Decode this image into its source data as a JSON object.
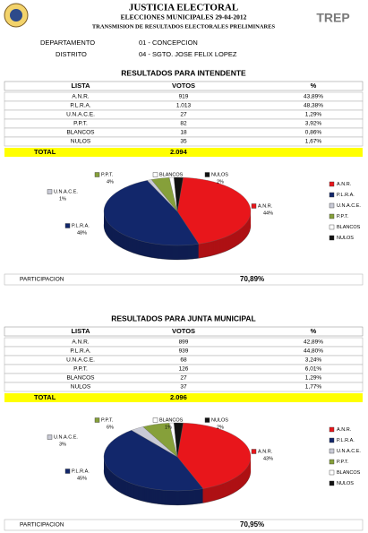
{
  "header": {
    "title": "JUSTICIA ELECTORAL",
    "subtitle": "ELECCIONES MUNICIPALES 29-04-2012",
    "subtitle2": "TRANSMISION DE RESULTADOS ELECTORALES PRELIMINARES",
    "logo": "TREP"
  },
  "info": [
    [
      "DEPARTAMENTO",
      "01 - CONCEPCION"
    ],
    [
      "DISTRITO",
      "04 - SGTO. JOSE FELIX LOPEZ"
    ]
  ],
  "sections": [
    {
      "title": "RESULTADOS PARA INTENDENTE",
      "columns": [
        "LISTA",
        "VOTOS",
        "%"
      ],
      "rows": [
        [
          "A.N.R.",
          "919",
          "43,89%"
        ],
        [
          "P.L.R.A.",
          "1.013",
          "48,38%"
        ],
        [
          "U.N.A.C.E.",
          "27",
          "1,29%"
        ],
        [
          "P.P.T.",
          "82",
          "3,92%"
        ],
        [
          "BLANCOS",
          "18",
          "0,86%"
        ],
        [
          "NULOS",
          "35",
          "1,67%"
        ]
      ],
      "total": [
        "TOTAL",
        "2.094"
      ],
      "chart_data": {
        "type": "pie",
        "categories": [
          "A.N.R.",
          "P.L.R.A.",
          "U.N.A.C.E.",
          "P.P.T.",
          "BLANCOS",
          "NULOS"
        ],
        "values": [
          44,
          48,
          1,
          4,
          1,
          2
        ],
        "value_labels": [
          "44%",
          "48%",
          "1%",
          "4%",
          null,
          "2%"
        ],
        "colors": [
          "#e8161b",
          "#12276b",
          "#c9cad6",
          "#86a03a",
          "#ffffff",
          "#111111"
        ]
      },
      "participation": [
        "PARTICIPACION",
        "70,89%"
      ]
    },
    {
      "title": "RESULTADOS PARA JUNTA MUNICIPAL",
      "columns": [
        "LISTA",
        "VOTOS",
        "%"
      ],
      "rows": [
        [
          "A.N.R.",
          "899",
          "42,89%"
        ],
        [
          "P.L.R.A.",
          "939",
          "44,80%"
        ],
        [
          "U.N.A.C.E.",
          "68",
          "3,24%"
        ],
        [
          "P.P.T.",
          "126",
          "6,01%"
        ],
        [
          "BLANCOS",
          "27",
          "1,29%"
        ],
        [
          "NULOS",
          "37",
          "1,77%"
        ]
      ],
      "total": [
        "TOTAL",
        "2.096"
      ],
      "chart_data": {
        "type": "pie",
        "categories": [
          "A.N.R.",
          "P.L.R.A.",
          "U.N.A.C.E.",
          "P.P.T.",
          "BLANCOS",
          "NULOS"
        ],
        "values": [
          43,
          45,
          3,
          6,
          1,
          2
        ],
        "value_labels": [
          "43%",
          "45%",
          "3%",
          "6%",
          "1%",
          "2%"
        ],
        "colors": [
          "#e8161b",
          "#12276b",
          "#c9cad6",
          "#86a03a",
          "#ffffff",
          "#111111"
        ]
      },
      "participation": [
        "PARTICIPACION",
        "70,95%"
      ]
    }
  ]
}
